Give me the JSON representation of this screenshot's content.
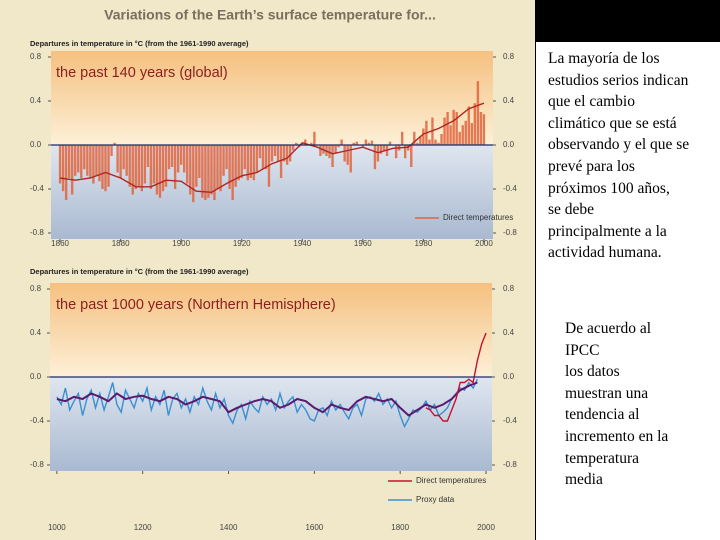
{
  "title": "Variations of the Earth’s surface temperature for...",
  "chart_data": [
    {
      "type": "bar",
      "axis_title": "Departures in temperature in °C (from the 1961-1990 average)",
      "subtitle": "the past 140 years (global)",
      "xlim": [
        1857,
        2003
      ],
      "xticks": [
        1860,
        1880,
        1900,
        1920,
        1940,
        1960,
        1980,
        2000
      ],
      "ylim": [
        -0.8,
        0.8
      ],
      "yticks": [
        0.8,
        0.4,
        {
          "value": 0,
          "label": "0.0"
        },
        -0.4,
        -0.8
      ],
      "series": [
        {
          "name": "Direct temperatures",
          "type": "bar",
          "color": "#e0643c",
          "x": [
            1860,
            1861,
            1862,
            1863,
            1864,
            1865,
            1866,
            1867,
            1868,
            1869,
            1870,
            1871,
            1872,
            1873,
            1874,
            1875,
            1876,
            1877,
            1878,
            1879,
            1880,
            1881,
            1882,
            1883,
            1884,
            1885,
            1886,
            1887,
            1888,
            1889,
            1890,
            1891,
            1892,
            1893,
            1894,
            1895,
            1896,
            1897,
            1898,
            1899,
            1900,
            1901,
            1902,
            1903,
            1904,
            1905,
            1906,
            1907,
            1908,
            1909,
            1910,
            1911,
            1912,
            1913,
            1914,
            1915,
            1916,
            1917,
            1918,
            1919,
            1920,
            1921,
            1922,
            1923,
            1924,
            1925,
            1926,
            1927,
            1928,
            1929,
            1930,
            1931,
            1932,
            1933,
            1934,
            1935,
            1936,
            1937,
            1938,
            1939,
            1940,
            1941,
            1942,
            1943,
            1944,
            1945,
            1946,
            1947,
            1948,
            1949,
            1950,
            1951,
            1952,
            1953,
            1954,
            1955,
            1956,
            1957,
            1958,
            1959,
            1960,
            1961,
            1962,
            1963,
            1964,
            1965,
            1966,
            1967,
            1968,
            1969,
            1970,
            1971,
            1972,
            1973,
            1974,
            1975,
            1976,
            1977,
            1978,
            1979,
            1980,
            1981,
            1982,
            1983,
            1984,
            1985,
            1986,
            1987,
            1988,
            1989,
            1990,
            1991,
            1992,
            1993,
            1994,
            1995,
            1996,
            1997,
            1998,
            1999,
            2000
          ],
          "values": [
            -0.35,
            -0.42,
            -0.5,
            -0.3,
            -0.45,
            -0.28,
            -0.25,
            -0.3,
            -0.22,
            -0.28,
            -0.3,
            -0.35,
            -0.28,
            -0.33,
            -0.4,
            -0.42,
            -0.38,
            -0.1,
            0.02,
            -0.25,
            -0.3,
            -0.22,
            -0.28,
            -0.38,
            -0.45,
            -0.4,
            -0.38,
            -0.42,
            -0.35,
            -0.2,
            -0.4,
            -0.35,
            -0.45,
            -0.48,
            -0.42,
            -0.38,
            -0.22,
            -0.2,
            -0.4,
            -0.25,
            -0.18,
            -0.25,
            -0.35,
            -0.45,
            -0.52,
            -0.38,
            -0.3,
            -0.48,
            -0.5,
            -0.48,
            -0.45,
            -0.5,
            -0.4,
            -0.42,
            -0.28,
            -0.22,
            -0.4,
            -0.5,
            -0.38,
            -0.32,
            -0.3,
            -0.22,
            -0.32,
            -0.3,
            -0.32,
            -0.25,
            -0.12,
            -0.22,
            -0.22,
            -0.38,
            -0.15,
            -0.1,
            -0.15,
            -0.3,
            -0.15,
            -0.18,
            -0.15,
            -0.05,
            0.02,
            -0.02,
            0.02,
            0.05,
            0.0,
            0.02,
            0.12,
            0.0,
            -0.1,
            -0.08,
            -0.1,
            -0.12,
            -0.2,
            -0.08,
            -0.02,
            0.05,
            -0.15,
            -0.18,
            -0.25,
            0.02,
            0.03,
            0.0,
            -0.02,
            0.05,
            0.02,
            0.04,
            -0.22,
            -0.15,
            -0.08,
            -0.05,
            -0.1,
            0.03,
            0.0,
            -0.12,
            -0.05,
            0.12,
            -0.12,
            -0.05,
            -0.2,
            0.12,
            0.02,
            0.08,
            0.15,
            0.22,
            0.05,
            0.25,
            0.05,
            0.02,
            0.1,
            0.25,
            0.3,
            0.18,
            0.32,
            0.3,
            0.12,
            0.18,
            0.22,
            0.35,
            0.2,
            0.38,
            0.58,
            0.3,
            0.28
          ]
        },
        {
          "type": "line",
          "color": "#b3241e",
          "x": [
            1860,
            1865,
            1870,
            1875,
            1880,
            1885,
            1890,
            1895,
            1900,
            1905,
            1910,
            1915,
            1920,
            1925,
            1930,
            1935,
            1940,
            1945,
            1950,
            1955,
            1960,
            1965,
            1970,
            1975,
            1980,
            1985,
            1990,
            1995,
            2000
          ],
          "values": [
            -0.3,
            -0.32,
            -0.3,
            -0.25,
            -0.3,
            -0.38,
            -0.38,
            -0.32,
            -0.33,
            -0.42,
            -0.43,
            -0.35,
            -0.28,
            -0.25,
            -0.17,
            -0.12,
            0.02,
            -0.02,
            -0.08,
            -0.05,
            -0.02,
            -0.07,
            -0.03,
            -0.02,
            0.1,
            0.15,
            0.22,
            0.33,
            0.38
          ]
        }
      ]
    },
    {
      "type": "line",
      "axis_title": "Departures in temperature in °C (from the 1961-1990 average)",
      "subtitle": "the past 1000 years (Northern Hemisphere)",
      "xlim": [
        984,
        2014
      ],
      "xticks": [
        1000,
        1200,
        1400,
        1600,
        1800,
        2000
      ],
      "ylim": [
        -0.8,
        0.8
      ],
      "yticks": [
        0.8,
        0.4,
        {
          "value": 0,
          "label": "0.0"
        },
        -0.4,
        -0.8
      ],
      "series": [
        {
          "name": "Proxy data",
          "type": "line",
          "color": "#3a8fd0",
          "x": [
            1000,
            1010,
            1020,
            1030,
            1040,
            1050,
            1060,
            1070,
            1080,
            1090,
            1100,
            1110,
            1120,
            1130,
            1140,
            1150,
            1160,
            1170,
            1180,
            1190,
            1200,
            1210,
            1220,
            1230,
            1240,
            1250,
            1260,
            1270,
            1280,
            1290,
            1300,
            1310,
            1320,
            1330,
            1340,
            1350,
            1360,
            1370,
            1380,
            1390,
            1400,
            1410,
            1420,
            1430,
            1440,
            1450,
            1460,
            1470,
            1480,
            1490,
            1500,
            1510,
            1520,
            1530,
            1540,
            1550,
            1560,
            1570,
            1580,
            1590,
            1600,
            1610,
            1620,
            1630,
            1640,
            1650,
            1660,
            1670,
            1680,
            1690,
            1700,
            1710,
            1720,
            1730,
            1740,
            1750,
            1760,
            1770,
            1780,
            1790,
            1800,
            1810,
            1820,
            1830,
            1840,
            1850,
            1860,
            1870,
            1880,
            1890,
            1900,
            1910,
            1920,
            1930,
            1940,
            1950,
            1960,
            1970,
            1980
          ],
          "values": [
            -0.18,
            -0.25,
            -0.1,
            -0.3,
            -0.22,
            -0.15,
            -0.35,
            -0.2,
            -0.12,
            -0.28,
            -0.15,
            -0.3,
            -0.18,
            -0.05,
            -0.25,
            -0.32,
            -0.12,
            -0.2,
            -0.28,
            -0.15,
            -0.22,
            -0.1,
            -0.3,
            -0.18,
            -0.25,
            -0.12,
            -0.35,
            -0.2,
            -0.15,
            -0.28,
            -0.2,
            -0.32,
            -0.18,
            -0.25,
            -0.1,
            -0.22,
            -0.3,
            -0.15,
            -0.28,
            -0.2,
            -0.35,
            -0.42,
            -0.3,
            -0.25,
            -0.38,
            -0.22,
            -0.28,
            -0.32,
            -0.18,
            -0.25,
            -0.2,
            -0.3,
            -0.15,
            -0.28,
            -0.22,
            -0.18,
            -0.32,
            -0.25,
            -0.3,
            -0.38,
            -0.4,
            -0.3,
            -0.28,
            -0.35,
            -0.22,
            -0.3,
            -0.25,
            -0.32,
            -0.38,
            -0.28,
            -0.25,
            -0.35,
            -0.2,
            -0.18,
            -0.22,
            -0.15,
            -0.25,
            -0.2,
            -0.28,
            -0.22,
            -0.35,
            -0.45,
            -0.38,
            -0.3,
            -0.32,
            -0.28,
            -0.22,
            -0.3,
            -0.25,
            -0.35,
            -0.32,
            -0.28,
            -0.2,
            -0.15,
            -0.1,
            -0.12,
            -0.05,
            -0.1,
            -0.02
          ]
        },
        {
          "type": "line",
          "color": "#5a1a6e",
          "width": 2,
          "x": [
            1000,
            1020,
            1040,
            1060,
            1080,
            1100,
            1120,
            1140,
            1160,
            1180,
            1200,
            1220,
            1240,
            1260,
            1280,
            1300,
            1320,
            1340,
            1360,
            1380,
            1400,
            1420,
            1440,
            1460,
            1480,
            1500,
            1520,
            1540,
            1560,
            1580,
            1600,
            1620,
            1640,
            1660,
            1680,
            1700,
            1720,
            1740,
            1760,
            1780,
            1800,
            1820,
            1840,
            1860,
            1880,
            1900,
            1920,
            1940,
            1960,
            1980
          ],
          "values": [
            -0.2,
            -0.22,
            -0.18,
            -0.2,
            -0.15,
            -0.18,
            -0.22,
            -0.15,
            -0.2,
            -0.18,
            -0.17,
            -0.2,
            -0.22,
            -0.18,
            -0.2,
            -0.25,
            -0.22,
            -0.18,
            -0.2,
            -0.22,
            -0.32,
            -0.28,
            -0.25,
            -0.22,
            -0.2,
            -0.22,
            -0.28,
            -0.25,
            -0.2,
            -0.22,
            -0.28,
            -0.32,
            -0.25,
            -0.28,
            -0.3,
            -0.22,
            -0.18,
            -0.2,
            -0.22,
            -0.2,
            -0.28,
            -0.35,
            -0.3,
            -0.25,
            -0.28,
            -0.25,
            -0.2,
            -0.12,
            -0.08,
            -0.05
          ]
        },
        {
          "name": "Direct temperatures",
          "type": "line",
          "color": "#c8102e",
          "x": [
            1860,
            1870,
            1880,
            1890,
            1900,
            1910,
            1920,
            1930,
            1940,
            1950,
            1960,
            1970,
            1980,
            1990,
            2000
          ],
          "values": [
            -0.28,
            -0.3,
            -0.35,
            -0.35,
            -0.4,
            -0.4,
            -0.3,
            -0.2,
            -0.05,
            -0.05,
            -0.02,
            -0.05,
            0.15,
            0.3,
            0.4
          ]
        }
      ]
    }
  ],
  "text": {
    "paragraph_1": [
      "La mayoría de los",
      "estudios serios indican",
      "que el cambio",
      "climático que se está",
      "observando y el que se",
      "prevé para los",
      "próximos 100 años,",
      "se debe",
      "principalmente a la",
      "actividad humana."
    ],
    "paragraph_2": [
      "De acuerdo al",
      "IPCC",
      "los datos",
      "muestran una",
      "tendencia al",
      "incremento en la",
      "temperatura",
      "media"
    ]
  }
}
